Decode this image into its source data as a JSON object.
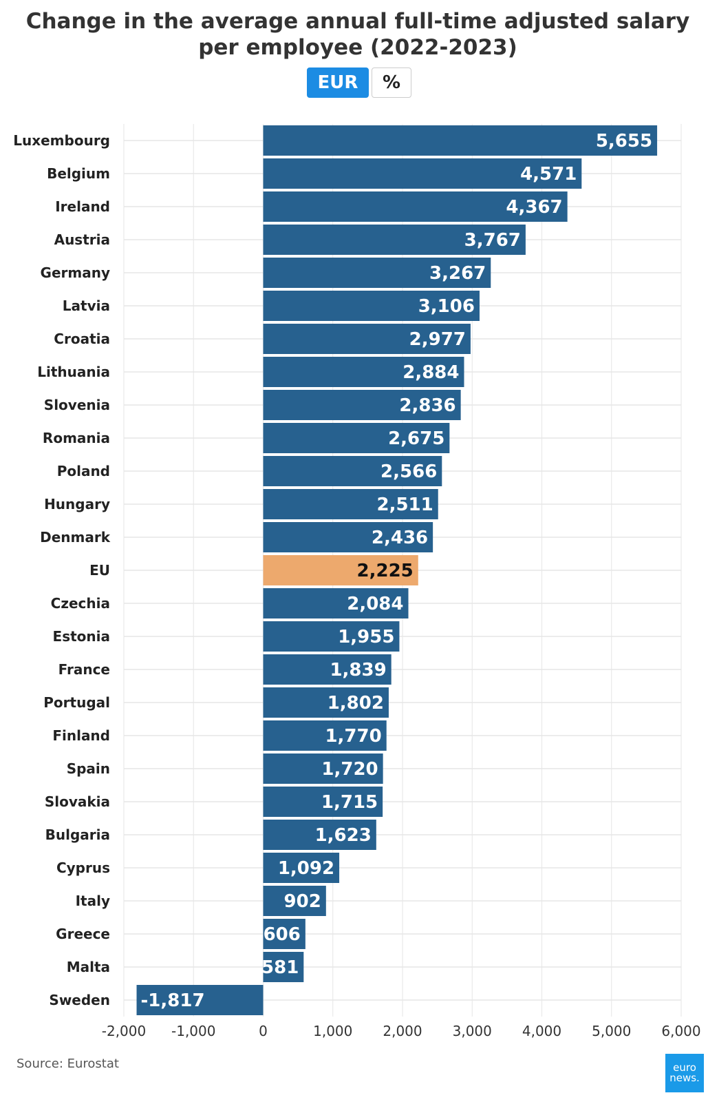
{
  "header": {
    "title": "Change in the average annual full-time adjusted salary per employee (2022-2023)"
  },
  "toggle": {
    "eur_label": "EUR",
    "pct_label": "%"
  },
  "chart_data": {
    "type": "bar",
    "orientation": "horizontal",
    "title": "Change in the average annual full-time adjusted salary per employee (2022-2023)",
    "categories": [
      "Luxembourg",
      "Belgium",
      "Ireland",
      "Austria",
      "Germany",
      "Latvia",
      "Croatia",
      "Lithuania",
      "Slovenia",
      "Romania",
      "Poland",
      "Hungary",
      "Denmark",
      "EU",
      "Czechia",
      "Estonia",
      "France",
      "Portugal",
      "Finland",
      "Spain",
      "Slovakia",
      "Bulgaria",
      "Cyprus",
      "Italy",
      "Greece",
      "Malta",
      "Sweden"
    ],
    "values": [
      5655,
      4571,
      4367,
      3767,
      3267,
      3106,
      2977,
      2884,
      2836,
      2675,
      2566,
      2511,
      2436,
      2225,
      2084,
      1955,
      1839,
      1802,
      1770,
      1720,
      1715,
      1623,
      1092,
      902,
      606,
      581,
      -1817
    ],
    "value_labels": [
      "5,655",
      "4,571",
      "4,367",
      "3,767",
      "3,267",
      "3,106",
      "2,977",
      "2,884",
      "2,836",
      "2,675",
      "2,566",
      "2,511",
      "2,436",
      "2,225",
      "2,084",
      "1,955",
      "1,839",
      "1,802",
      "1,770",
      "1,720",
      "1,715",
      "1,623",
      "1,092",
      "902",
      "606",
      "581",
      "-1,817"
    ],
    "highlight": "EU",
    "xlim": [
      -2000,
      6000
    ],
    "xticks": [
      -2000,
      -1000,
      0,
      1000,
      2000,
      3000,
      4000,
      5000,
      6000
    ],
    "xtick_labels": [
      "-2,000",
      "-1,000",
      "0",
      "1,000",
      "2,000",
      "3,000",
      "4,000",
      "5,000",
      "6,000"
    ],
    "grid": true,
    "xlabel": "",
    "ylabel": "",
    "colors": {
      "bar": "#27618f",
      "highlight": "#eda96d",
      "grid": "#e6e6e6",
      "label_light": "#ffffff",
      "label_dark": "#111111"
    }
  },
  "footer": {
    "source": "Source: Eurostat",
    "logo_line1": "euro",
    "logo_line2": "news."
  }
}
